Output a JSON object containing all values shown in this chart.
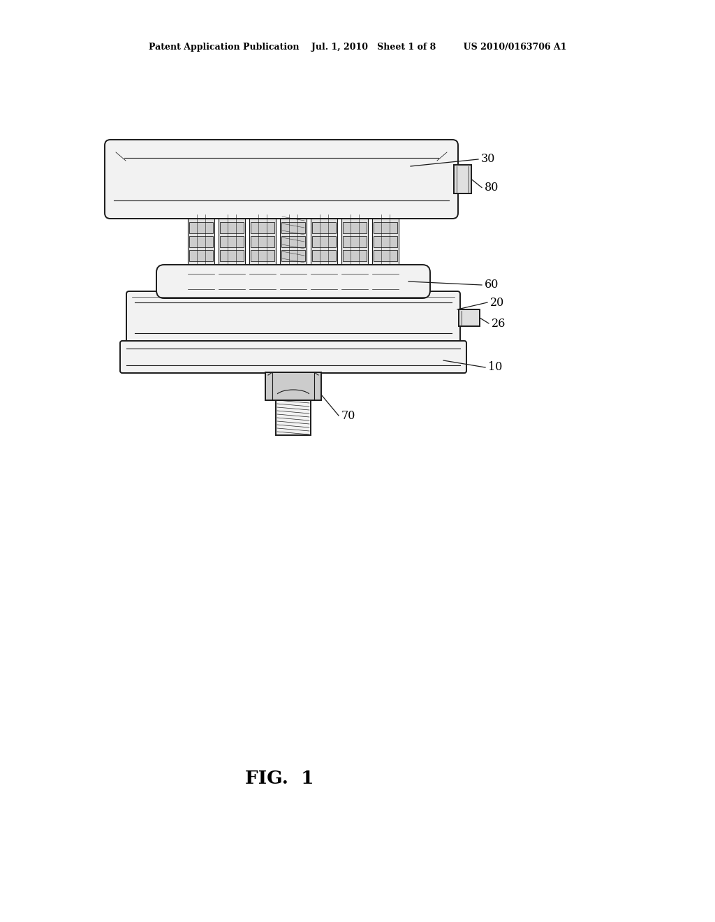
{
  "bg_color": "#ffffff",
  "lc": "#1a1a1a",
  "lw": 1.4,
  "tlw": 0.8,
  "header": "Patent Application Publication    Jul. 1, 2010   Sheet 1 of 8         US 2010/0163706 A1",
  "fig_label": "FIG.  1",
  "fc_light": "#f2f2f2",
  "fc_mid": "#e0e0e0",
  "fc_dark": "#cccccc",
  "fc_col": "#d4d4d4",
  "fc_block": "#b8b8b8"
}
